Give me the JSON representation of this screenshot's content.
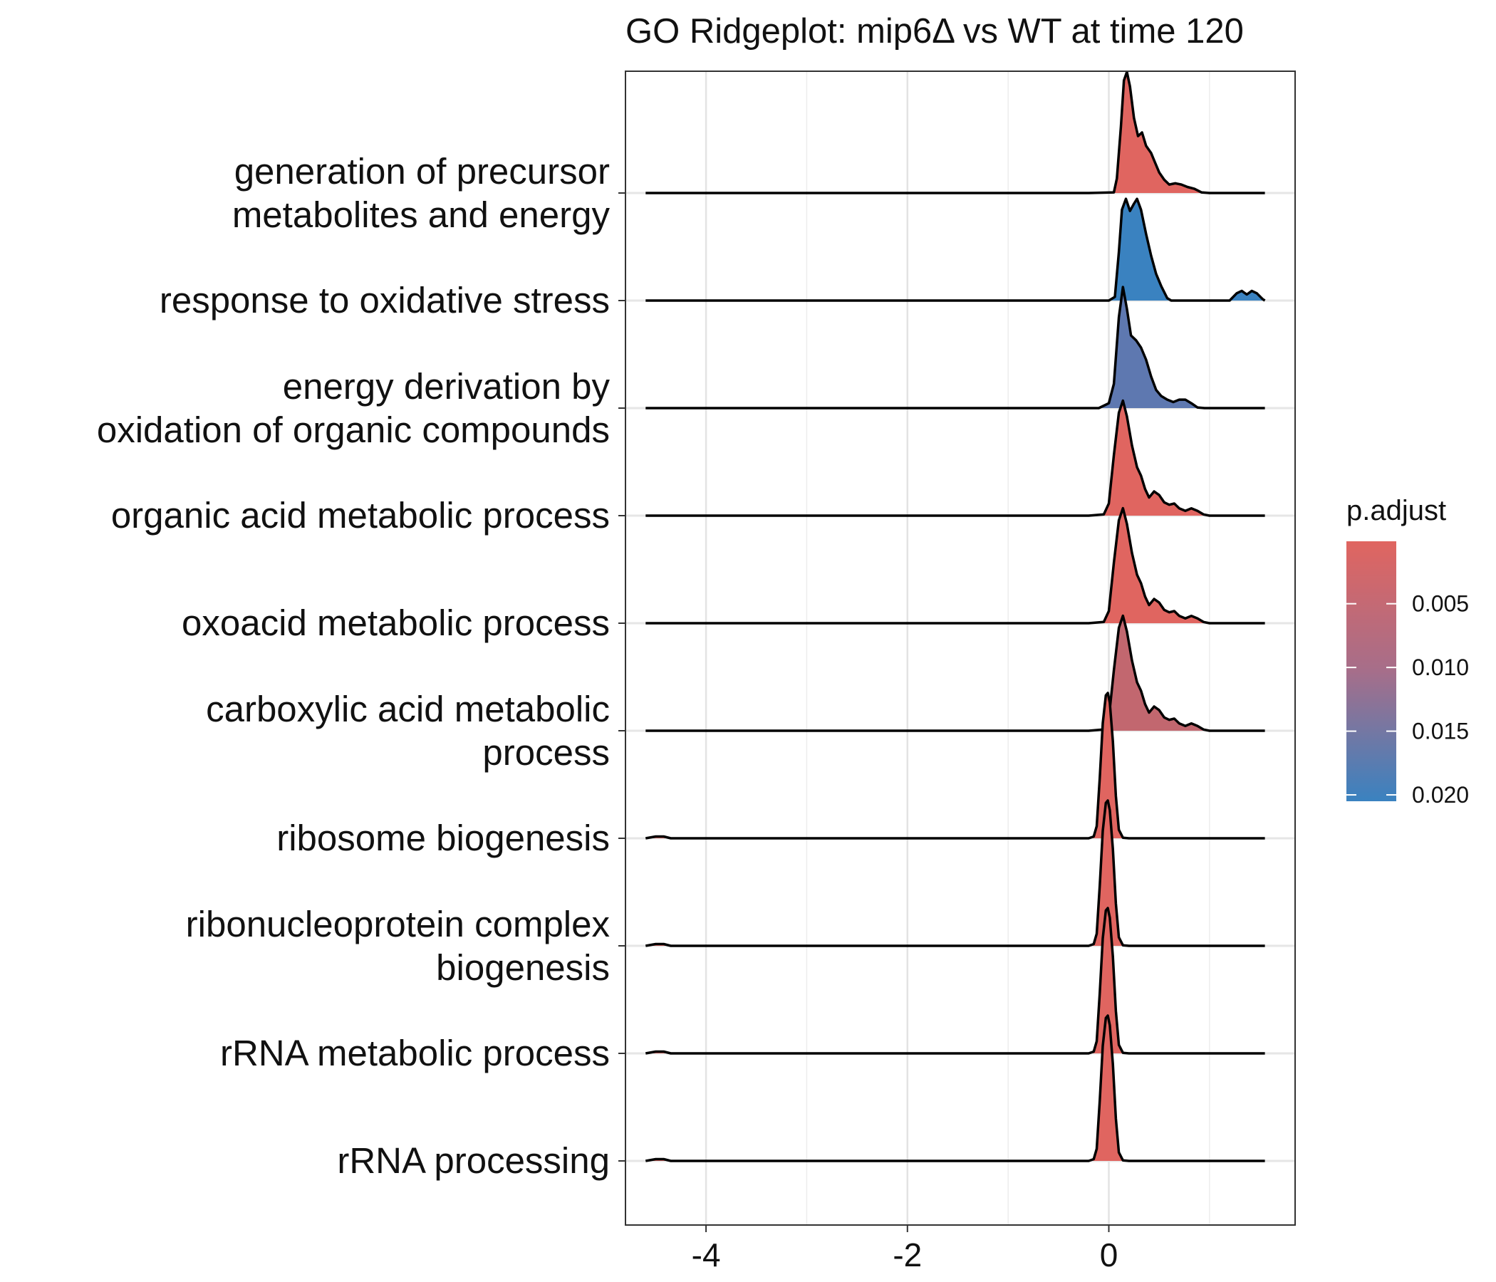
{
  "chart_data": {
    "type": "ridgeline",
    "title": "GO Ridgeplot: mip6Δ vs WT at time 120",
    "xlabel": "",
    "ylabel": "",
    "xlim": [
      -4.8,
      1.85
    ],
    "x_ticks": [
      -4,
      -2,
      0
    ],
    "grid": true,
    "legend": {
      "title": "p.adjust",
      "placement": "right",
      "ticks": [
        0.005,
        0.01,
        0.015,
        0.02
      ],
      "tick_labels": [
        "0.005",
        "0.010",
        "0.015",
        "0.020"
      ],
      "range": [
        0.0001,
        0.0205
      ],
      "low_color": "#E06560",
      "high_color": "#3A82C0"
    },
    "series": [
      {
        "label_lines": [
          "generation of precursor",
          "metabolites and energy"
        ],
        "p_adjust": 0.0008,
        "fill_color": "#E06560",
        "density": [
          [
            -4.6,
            0
          ],
          [
            -0.2,
            0
          ],
          [
            0.05,
            0.005
          ],
          [
            0.08,
            0.12
          ],
          [
            0.12,
            0.55
          ],
          [
            0.15,
            0.93
          ],
          [
            0.18,
            1.0
          ],
          [
            0.21,
            0.88
          ],
          [
            0.25,
            0.62
          ],
          [
            0.29,
            0.47
          ],
          [
            0.33,
            0.5
          ],
          [
            0.37,
            0.39
          ],
          [
            0.42,
            0.33
          ],
          [
            0.46,
            0.25
          ],
          [
            0.5,
            0.17
          ],
          [
            0.55,
            0.11
          ],
          [
            0.6,
            0.07
          ],
          [
            0.66,
            0.08
          ],
          [
            0.72,
            0.07
          ],
          [
            0.78,
            0.05
          ],
          [
            0.85,
            0.035
          ],
          [
            0.92,
            0.005
          ],
          [
            1.0,
            0
          ],
          [
            1.55,
            0
          ]
        ]
      },
      {
        "label_lines": [
          "response to oxidative stress"
        ],
        "p_adjust": 0.0205,
        "fill_color": "#3A82C0",
        "density": [
          [
            -4.6,
            0
          ],
          [
            0.0,
            0
          ],
          [
            0.06,
            0.03
          ],
          [
            0.1,
            0.4
          ],
          [
            0.13,
            0.75
          ],
          [
            0.17,
            0.84
          ],
          [
            0.21,
            0.74
          ],
          [
            0.25,
            0.8
          ],
          [
            0.28,
            0.84
          ],
          [
            0.32,
            0.75
          ],
          [
            0.37,
            0.55
          ],
          [
            0.42,
            0.37
          ],
          [
            0.47,
            0.22
          ],
          [
            0.52,
            0.12
          ],
          [
            0.58,
            0.02
          ],
          [
            0.62,
            0
          ],
          [
            1.2,
            0
          ],
          [
            1.27,
            0.06
          ],
          [
            1.32,
            0.08
          ],
          [
            1.37,
            0.05
          ],
          [
            1.42,
            0.08
          ],
          [
            1.47,
            0.06
          ],
          [
            1.53,
            0.01
          ],
          [
            1.55,
            0
          ]
        ]
      },
      {
        "label_lines": [
          "energy derivation by",
          "oxidation of organic compounds"
        ],
        "p_adjust": 0.0165,
        "fill_color": "#5E78B0",
        "density": [
          [
            -4.6,
            0
          ],
          [
            -0.1,
            0
          ],
          [
            0.0,
            0.04
          ],
          [
            0.05,
            0.2
          ],
          [
            0.1,
            0.75
          ],
          [
            0.14,
            1.0
          ],
          [
            0.18,
            0.82
          ],
          [
            0.22,
            0.6
          ],
          [
            0.27,
            0.56
          ],
          [
            0.32,
            0.5
          ],
          [
            0.37,
            0.4
          ],
          [
            0.42,
            0.26
          ],
          [
            0.47,
            0.15
          ],
          [
            0.52,
            0.1
          ],
          [
            0.58,
            0.07
          ],
          [
            0.64,
            0.05
          ],
          [
            0.7,
            0.07
          ],
          [
            0.76,
            0.07
          ],
          [
            0.82,
            0.04
          ],
          [
            0.88,
            0.005
          ],
          [
            0.95,
            0
          ],
          [
            1.55,
            0
          ]
        ]
      },
      {
        "label_lines": [
          "organic acid metabolic process"
        ],
        "p_adjust": 0.0008,
        "fill_color": "#E06560",
        "density": [
          [
            -4.6,
            0
          ],
          [
            -0.2,
            0
          ],
          [
            -0.05,
            0.01
          ],
          [
            0.0,
            0.1
          ],
          [
            0.05,
            0.5
          ],
          [
            0.1,
            0.85
          ],
          [
            0.14,
            0.95
          ],
          [
            0.18,
            0.82
          ],
          [
            0.23,
            0.58
          ],
          [
            0.28,
            0.4
          ],
          [
            0.32,
            0.33
          ],
          [
            0.36,
            0.22
          ],
          [
            0.4,
            0.15
          ],
          [
            0.45,
            0.2
          ],
          [
            0.5,
            0.17
          ],
          [
            0.55,
            0.11
          ],
          [
            0.6,
            0.09
          ],
          [
            0.65,
            0.1
          ],
          [
            0.7,
            0.06
          ],
          [
            0.76,
            0.04
          ],
          [
            0.82,
            0.06
          ],
          [
            0.88,
            0.04
          ],
          [
            0.94,
            0.01
          ],
          [
            1.0,
            0
          ],
          [
            1.55,
            0
          ]
        ]
      },
      {
        "label_lines": [
          "oxoacid metabolic process"
        ],
        "p_adjust": 0.0008,
        "fill_color": "#E06560",
        "density": [
          [
            -4.6,
            0
          ],
          [
            -0.2,
            0
          ],
          [
            -0.05,
            0.01
          ],
          [
            0.0,
            0.1
          ],
          [
            0.05,
            0.5
          ],
          [
            0.1,
            0.85
          ],
          [
            0.14,
            0.95
          ],
          [
            0.18,
            0.82
          ],
          [
            0.23,
            0.58
          ],
          [
            0.28,
            0.4
          ],
          [
            0.32,
            0.33
          ],
          [
            0.36,
            0.22
          ],
          [
            0.4,
            0.15
          ],
          [
            0.45,
            0.2
          ],
          [
            0.5,
            0.17
          ],
          [
            0.55,
            0.11
          ],
          [
            0.6,
            0.09
          ],
          [
            0.65,
            0.1
          ],
          [
            0.7,
            0.06
          ],
          [
            0.76,
            0.04
          ],
          [
            0.82,
            0.06
          ],
          [
            0.88,
            0.04
          ],
          [
            0.94,
            0.01
          ],
          [
            1.0,
            0
          ],
          [
            1.55,
            0
          ]
        ]
      },
      {
        "label_lines": [
          "carboxylic acid metabolic",
          "process"
        ],
        "p_adjust": 0.0085,
        "fill_color": "#C2676F",
        "density": [
          [
            -4.6,
            0
          ],
          [
            -0.2,
            0
          ],
          [
            -0.05,
            0.01
          ],
          [
            0.0,
            0.1
          ],
          [
            0.05,
            0.5
          ],
          [
            0.1,
            0.85
          ],
          [
            0.14,
            0.95
          ],
          [
            0.18,
            0.82
          ],
          [
            0.23,
            0.58
          ],
          [
            0.28,
            0.4
          ],
          [
            0.32,
            0.33
          ],
          [
            0.36,
            0.22
          ],
          [
            0.4,
            0.15
          ],
          [
            0.45,
            0.2
          ],
          [
            0.5,
            0.17
          ],
          [
            0.55,
            0.11
          ],
          [
            0.6,
            0.09
          ],
          [
            0.65,
            0.1
          ],
          [
            0.7,
            0.06
          ],
          [
            0.76,
            0.04
          ],
          [
            0.82,
            0.06
          ],
          [
            0.88,
            0.04
          ],
          [
            0.94,
            0.01
          ],
          [
            1.0,
            0
          ],
          [
            1.55,
            0
          ]
        ]
      },
      {
        "label_lines": [
          "ribosome biogenesis"
        ],
        "p_adjust": 0.0004,
        "fill_color": "#E06560",
        "density": [
          [
            -4.6,
            0
          ],
          [
            -4.5,
            0.015
          ],
          [
            -4.42,
            0.015
          ],
          [
            -4.35,
            0
          ],
          [
            -0.2,
            0
          ],
          [
            -0.15,
            0.015
          ],
          [
            -0.12,
            0.1
          ],
          [
            -0.09,
            0.5
          ],
          [
            -0.06,
            0.95
          ],
          [
            -0.03,
            1.18
          ],
          [
            -0.01,
            1.2
          ],
          [
            0.01,
            1.12
          ],
          [
            0.04,
            0.8
          ],
          [
            0.07,
            0.35
          ],
          [
            0.1,
            0.07
          ],
          [
            0.14,
            0.005
          ],
          [
            0.2,
            0
          ],
          [
            1.55,
            0
          ]
        ]
      },
      {
        "label_lines": [
          "ribonucleoprotein complex",
          "biogenesis"
        ],
        "p_adjust": 0.0004,
        "fill_color": "#E06560",
        "density": [
          [
            -4.6,
            0
          ],
          [
            -4.5,
            0.015
          ],
          [
            -4.42,
            0.015
          ],
          [
            -4.35,
            0
          ],
          [
            -0.2,
            0
          ],
          [
            -0.15,
            0.015
          ],
          [
            -0.12,
            0.1
          ],
          [
            -0.09,
            0.5
          ],
          [
            -0.06,
            0.95
          ],
          [
            -0.03,
            1.18
          ],
          [
            -0.01,
            1.2
          ],
          [
            0.01,
            1.12
          ],
          [
            0.04,
            0.8
          ],
          [
            0.07,
            0.35
          ],
          [
            0.1,
            0.07
          ],
          [
            0.14,
            0.005
          ],
          [
            0.2,
            0
          ],
          [
            1.55,
            0
          ]
        ]
      },
      {
        "label_lines": [
          "rRNA metabolic process"
        ],
        "p_adjust": 0.0004,
        "fill_color": "#E06560",
        "density": [
          [
            -4.6,
            0
          ],
          [
            -4.5,
            0.015
          ],
          [
            -4.42,
            0.015
          ],
          [
            -4.35,
            0
          ],
          [
            -0.2,
            0
          ],
          [
            -0.15,
            0.015
          ],
          [
            -0.12,
            0.1
          ],
          [
            -0.09,
            0.5
          ],
          [
            -0.06,
            0.95
          ],
          [
            -0.03,
            1.18
          ],
          [
            -0.01,
            1.2
          ],
          [
            0.01,
            1.12
          ],
          [
            0.04,
            0.8
          ],
          [
            0.07,
            0.35
          ],
          [
            0.1,
            0.07
          ],
          [
            0.14,
            0.005
          ],
          [
            0.2,
            0
          ],
          [
            1.55,
            0
          ]
        ]
      },
      {
        "label_lines": [
          "rRNA processing"
        ],
        "p_adjust": 0.0004,
        "fill_color": "#E06560",
        "density": [
          [
            -4.6,
            0
          ],
          [
            -4.5,
            0.015
          ],
          [
            -4.42,
            0.015
          ],
          [
            -4.35,
            0
          ],
          [
            -0.2,
            0
          ],
          [
            -0.15,
            0.015
          ],
          [
            -0.12,
            0.1
          ],
          [
            -0.09,
            0.5
          ],
          [
            -0.06,
            0.95
          ],
          [
            -0.03,
            1.18
          ],
          [
            -0.01,
            1.2
          ],
          [
            0.01,
            1.12
          ],
          [
            0.04,
            0.8
          ],
          [
            0.07,
            0.35
          ],
          [
            0.1,
            0.07
          ],
          [
            0.14,
            0.005
          ],
          [
            0.2,
            0
          ],
          [
            1.55,
            0
          ]
        ]
      }
    ]
  }
}
